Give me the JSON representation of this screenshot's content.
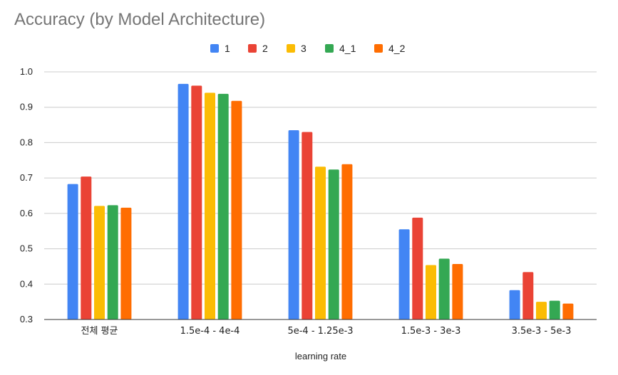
{
  "chart_data": {
    "type": "bar",
    "title": "Accuracy (by Model Architecture)",
    "xlabel": "learning rate",
    "ylabel": "",
    "ylim": [
      0.3,
      1.0
    ],
    "yticks": [
      "0.3",
      "0.4",
      "0.5",
      "0.6",
      "0.7",
      "0.8",
      "0.9",
      "1.0"
    ],
    "grid": true,
    "legend_position": "top-center",
    "categories": [
      "전체 평균",
      "1.5e-4 - 4e-4",
      "5e-4 - 1.25e-3",
      "1.5e-3 - 3e-3",
      "3.5e-3 - 5e-3"
    ],
    "series": [
      {
        "name": "1",
        "color": "#4285F4",
        "values": [
          0.683,
          0.966,
          0.835,
          0.555,
          0.383
        ]
      },
      {
        "name": "2",
        "color": "#EA4335",
        "values": [
          0.704,
          0.961,
          0.83,
          0.588,
          0.434
        ]
      },
      {
        "name": "3",
        "color": "#FBBC04",
        "values": [
          0.621,
          0.941,
          0.732,
          0.454,
          0.35
        ]
      },
      {
        "name": "4_1",
        "color": "#34A853",
        "values": [
          0.623,
          0.938,
          0.724,
          0.472,
          0.353
        ]
      },
      {
        "name": "4_2",
        "color": "#FF6D01",
        "values": [
          0.616,
          0.918,
          0.739,
          0.457,
          0.345
        ]
      }
    ]
  }
}
